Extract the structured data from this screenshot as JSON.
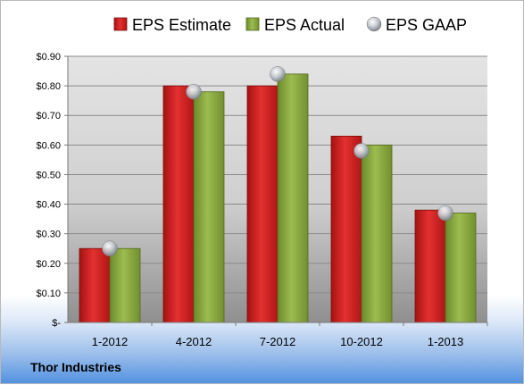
{
  "chart_data": {
    "type": "bar",
    "categories": [
      "1-2012",
      "4-2012",
      "7-2012",
      "10-2012",
      "1-2013"
    ],
    "series": [
      {
        "name": "EPS Estimate",
        "kind": "bar",
        "color": "#d42020",
        "values": [
          0.25,
          0.8,
          0.8,
          0.63,
          0.38
        ]
      },
      {
        "name": "EPS Actual",
        "kind": "bar",
        "color": "#8aaa3e",
        "values": [
          0.25,
          0.78,
          0.84,
          0.6,
          0.37
        ]
      },
      {
        "name": "EPS GAAP",
        "kind": "marker",
        "color": "#b8bcc4",
        "values": [
          0.25,
          0.78,
          0.84,
          0.58,
          0.37
        ]
      }
    ],
    "ylim": [
      0,
      0.9
    ],
    "yticks": [
      {
        "value": 0.0,
        "label": "$-"
      },
      {
        "value": 0.1,
        "label": "$0.10"
      },
      {
        "value": 0.2,
        "label": "$0.20"
      },
      {
        "value": 0.3,
        "label": "$0.30"
      },
      {
        "value": 0.4,
        "label": "$0.40"
      },
      {
        "value": 0.5,
        "label": "$0.50"
      },
      {
        "value": 0.6,
        "label": "$0.60"
      },
      {
        "value": 0.7,
        "label": "$0.70"
      },
      {
        "value": 0.8,
        "label": "$0.80"
      },
      {
        "value": 0.9,
        "label": "$0.90"
      }
    ],
    "grid": true,
    "legend": "top-center"
  },
  "footer": {
    "company": "Thor Industries"
  }
}
